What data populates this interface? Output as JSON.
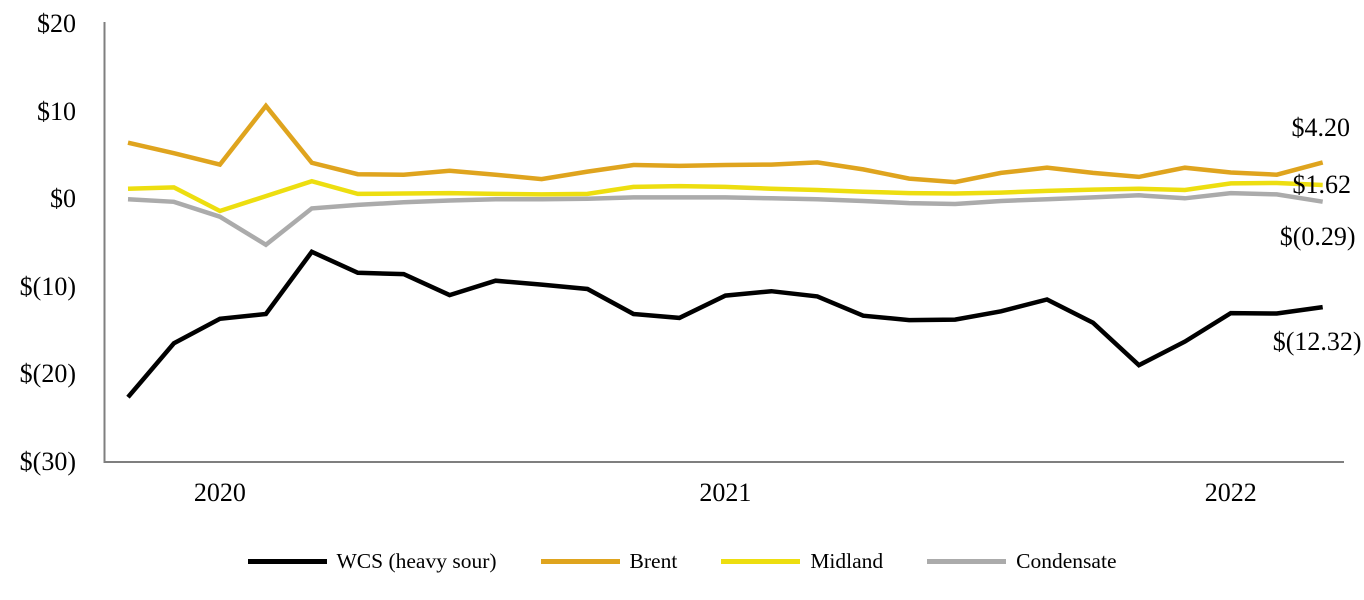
{
  "chart_data": {
    "type": "line",
    "title": "",
    "xlabel": "",
    "ylabel": "",
    "unit": "USD per barrel differential",
    "ylim": [
      -30,
      20
    ],
    "grid": false,
    "axis_color": "#7F7F7F",
    "background": "#ffffff",
    "n_points": 27,
    "y_ticks": [
      {
        "label": "$20",
        "value": 20
      },
      {
        "label": "$10",
        "value": 10
      },
      {
        "label": "$0",
        "value": 0
      },
      {
        "label": "$(10)",
        "value": -10
      },
      {
        "label": "$(20)",
        "value": -20
      },
      {
        "label": "$(30)",
        "value": -30
      }
    ],
    "x_tick_labels": [
      {
        "label": "2020",
        "index": 2
      },
      {
        "label": "2021",
        "index": 13
      },
      {
        "label": "2022",
        "index": 24
      }
    ],
    "legend_position": "bottom-center",
    "series": [
      {
        "name": "WCS (heavy sour)",
        "color": "#000000",
        "end_label": "$(12.32)",
        "values": [
          -22.6,
          -16.45,
          -13.65,
          -13.1,
          -6.0,
          -8.4,
          -8.55,
          -10.95,
          -9.3,
          -9.75,
          -10.25,
          -13.1,
          -13.55,
          -11.0,
          -10.5,
          -11.1,
          -13.3,
          -13.8,
          -13.75,
          -12.8,
          -11.45,
          -14.1,
          -18.95,
          -16.25,
          -13.0,
          -13.05,
          -12.32
        ]
      },
      {
        "name": "Brent",
        "color": "#DFA41E",
        "end_label": "$4.20",
        "values": [
          6.45,
          5.25,
          3.95,
          10.65,
          4.15,
          2.85,
          2.8,
          3.25,
          2.8,
          2.3,
          3.15,
          3.9,
          3.8,
          3.9,
          3.95,
          4.2,
          3.4,
          2.35,
          1.95,
          3.0,
          3.6,
          3.0,
          2.55,
          3.6,
          3.05,
          2.8,
          4.2
        ]
      },
      {
        "name": "Midland",
        "color": "#EDDE10",
        "end_label": "$1.62",
        "values": [
          1.2,
          1.35,
          -1.35,
          0.35,
          2.05,
          0.6,
          0.65,
          0.7,
          0.6,
          0.55,
          0.6,
          1.4,
          1.5,
          1.4,
          1.2,
          1.05,
          0.85,
          0.7,
          0.65,
          0.75,
          0.95,
          1.1,
          1.2,
          1.05,
          1.8,
          1.85,
          1.62
        ]
      },
      {
        "name": "Condensate",
        "color": "#ABABAB",
        "end_label": "$(0.29)",
        "values": [
          0.0,
          -0.3,
          -2.0,
          -5.2,
          -1.05,
          -0.65,
          -0.35,
          -0.15,
          0.0,
          0.0,
          0.05,
          0.2,
          0.2,
          0.2,
          0.1,
          0.0,
          -0.2,
          -0.45,
          -0.55,
          -0.2,
          0.0,
          0.2,
          0.45,
          0.1,
          0.7,
          0.55,
          -0.29
        ]
      }
    ]
  }
}
